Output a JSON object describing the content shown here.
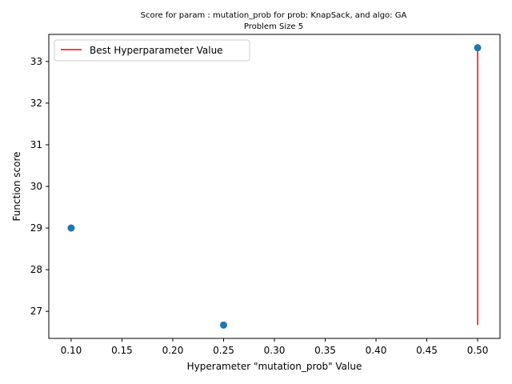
{
  "chart_data": {
    "type": "scatter",
    "title_line1": "Score for param : mutation_prob for prob: KnapSack, and algo: GA",
    "title_line2": "Problem Size 5",
    "xlabel": "Hyperameter \"mutation_prob\" Value",
    "ylabel": "Function score",
    "xlim": [
      0.078,
      0.522
    ],
    "ylim": [
      26.35,
      33.65
    ],
    "grid": false,
    "legend_position": "upper-left",
    "x_ticks": [
      "0.10",
      "0.15",
      "0.20",
      "0.25",
      "0.30",
      "0.35",
      "0.40",
      "0.45",
      "0.50"
    ],
    "x_tick_values": [
      0.1,
      0.15,
      0.2,
      0.25,
      0.3,
      0.35,
      0.4,
      0.45,
      0.5
    ],
    "y_ticks": [
      "27",
      "28",
      "29",
      "30",
      "31",
      "32",
      "33"
    ],
    "y_tick_values": [
      27,
      28,
      29,
      30,
      31,
      32,
      33
    ],
    "series": [
      {
        "type": "scatter",
        "color": "#1f77b4",
        "points": [
          {
            "x": 0.1,
            "y": 29.0
          },
          {
            "x": 0.25,
            "y": 26.67
          },
          {
            "x": 0.5,
            "y": 33.33
          }
        ]
      },
      {
        "type": "vline",
        "name": "Best Hyperparameter Value",
        "color": "#ff0000",
        "x": 0.5,
        "ymin": 26.67,
        "ymax": 33.33
      }
    ]
  }
}
